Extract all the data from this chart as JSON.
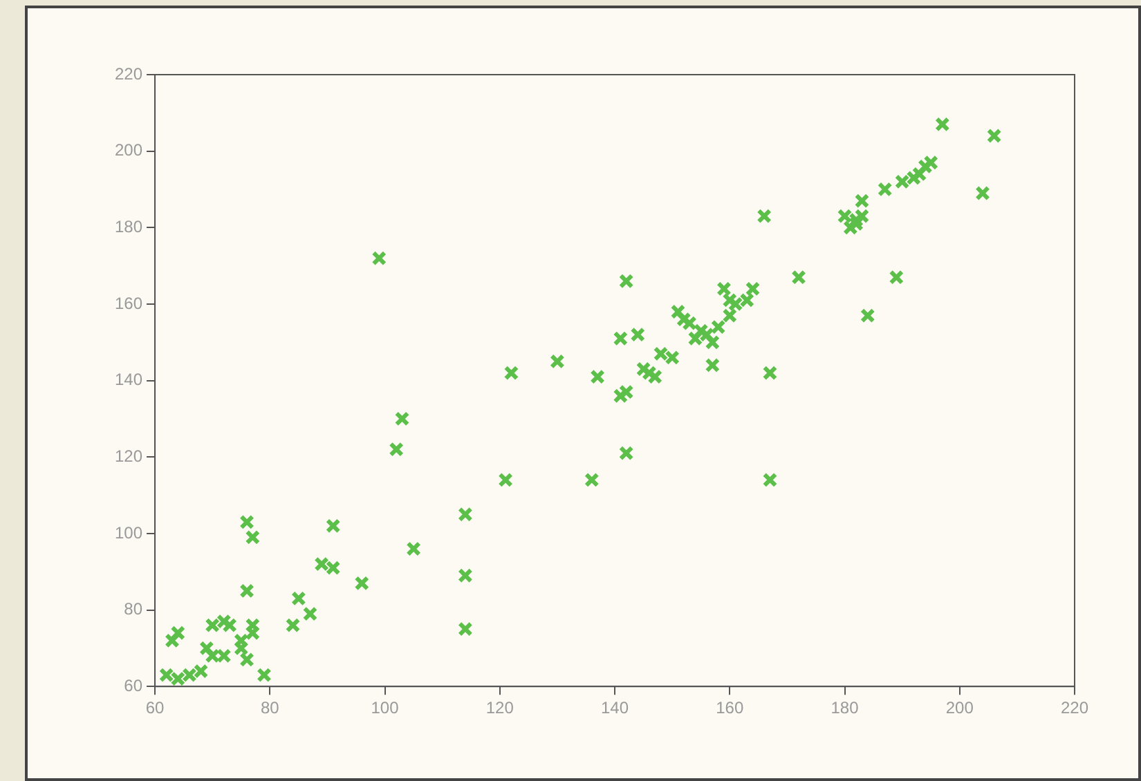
{
  "chart_data": {
    "type": "scatter",
    "color": "#5bbf4a",
    "marker": "cross",
    "grid": false,
    "legend": false,
    "xlim": [
      60,
      220
    ],
    "xticks": [
      60,
      80,
      100,
      120,
      140,
      160,
      180,
      200,
      220
    ],
    "ylim": [
      60,
      220
    ],
    "yticks": [
      60,
      80,
      100,
      120,
      140,
      160,
      180,
      200,
      220
    ],
    "x": [
      62,
      64,
      63,
      64,
      66,
      68,
      69,
      70,
      70,
      72,
      72,
      73,
      75,
      75,
      76,
      76,
      76,
      77,
      77,
      77,
      79,
      84,
      85,
      87,
      89,
      91,
      91,
      96,
      99,
      102,
      103,
      105,
      114,
      114,
      114,
      121,
      122,
      130,
      136,
      137,
      141,
      141,
      142,
      142,
      142,
      144,
      145,
      146,
      147,
      148,
      150,
      151,
      152,
      153,
      154,
      155,
      156,
      157,
      157,
      158,
      159,
      160,
      160,
      161,
      163,
      164,
      166,
      167,
      167,
      172,
      180,
      181,
      182,
      182,
      183,
      183,
      184,
      187,
      189,
      190,
      192,
      193,
      194,
      195,
      197,
      204,
      206
    ],
    "values": [
      63,
      62,
      72,
      74,
      63,
      64,
      70,
      68,
      76,
      68,
      77,
      76,
      70,
      72,
      103,
      67,
      85,
      76,
      74,
      99,
      63,
      76,
      83,
      79,
      92,
      91,
      102,
      87,
      172,
      122,
      130,
      96,
      105,
      89,
      75,
      114,
      142,
      145,
      114,
      141,
      136,
      151,
      121,
      166,
      137,
      152,
      143,
      142,
      141,
      147,
      146,
      158,
      156,
      155,
      151,
      153,
      152,
      144,
      150,
      154,
      164,
      157,
      161,
      160,
      161,
      164,
      183,
      142,
      114,
      167,
      183,
      180,
      182,
      181,
      183,
      187,
      157,
      190,
      167,
      192,
      193,
      194,
      196,
      197,
      207,
      189,
      204
    ]
  }
}
